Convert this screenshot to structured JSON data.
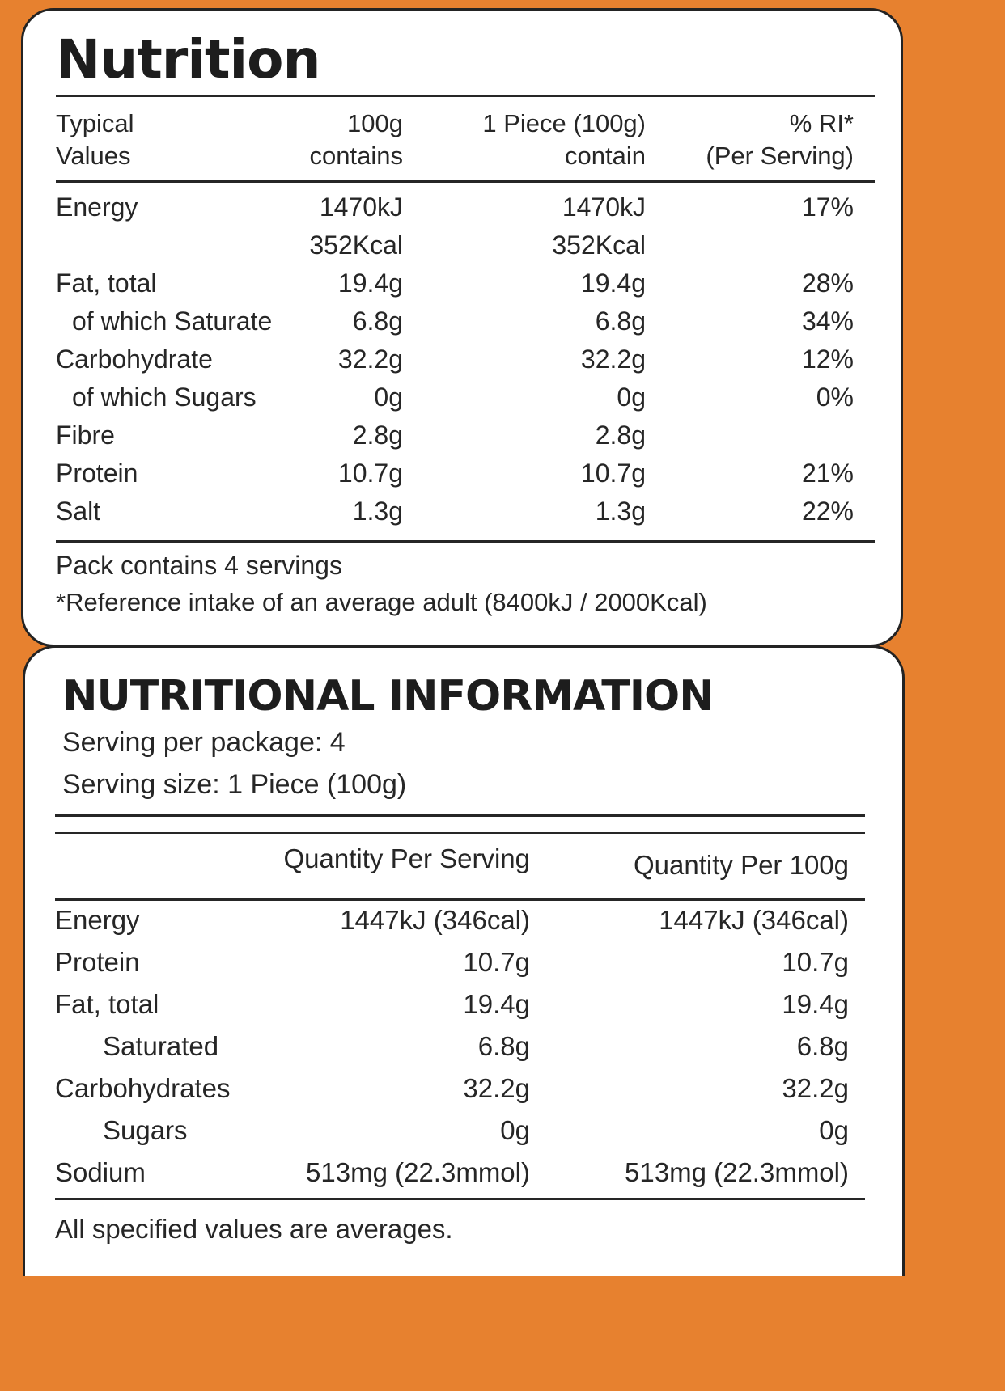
{
  "nutrition": {
    "title": "Nutrition",
    "headers": {
      "col0_line1": "Typical",
      "col0_line2": "Values",
      "col1_line1": "100g",
      "col1_line2": "contains",
      "col2_line1": "1 Piece (100g)",
      "col2_line2": "contain",
      "col3_line1": "% RI*",
      "col3_line2": "(Per Serving)"
    },
    "rows": [
      {
        "label": "Energy",
        "per100": "1470kJ",
        "perPiece": "1470kJ",
        "ri": "17%"
      },
      {
        "label": "",
        "per100": "352Kcal",
        "perPiece": "352Kcal",
        "ri": ""
      },
      {
        "label": "Fat, total",
        "per100": "19.4g",
        "perPiece": "19.4g",
        "ri": "28%"
      },
      {
        "label": "of which Saturate",
        "per100": "6.8g",
        "perPiece": "6.8g",
        "ri": "34%"
      },
      {
        "label": "Carbohydrate",
        "per100": "32.2g",
        "perPiece": "32.2g",
        "ri": "12%"
      },
      {
        "label": "of which Sugars",
        "per100": "0g",
        "perPiece": "0g",
        "ri": "0%"
      },
      {
        "label": "Fibre",
        "per100": "2.8g",
        "perPiece": "2.8g",
        "ri": ""
      },
      {
        "label": "Protein",
        "per100": "10.7g",
        "perPiece": "10.7g",
        "ri": "21%"
      },
      {
        "label": "Salt",
        "per100": "1.3g",
        "perPiece": "1.3g",
        "ri": "22%"
      }
    ],
    "footer_line1": "Pack contains 4 servings",
    "footer_line2": "*Reference intake of an average adult (8400kJ / 2000Kcal)"
  },
  "nutritional_information": {
    "title": "NUTRITIONAL INFORMATION",
    "serving_per_package": "Serving per package: 4",
    "serving_size": "Serving size:  1 Piece (100g)",
    "col_serving": "Quantity Per Serving",
    "col_100g": "Quantity Per 100g",
    "rows": [
      {
        "label": "Energy",
        "serving": "1447kJ (346cal)",
        "per100": "1447kJ (346cal)"
      },
      {
        "label": "Protein",
        "serving": "10.7g",
        "per100": "10.7g"
      },
      {
        "label": "Fat, total",
        "serving": "19.4g",
        "per100": "19.4g"
      },
      {
        "label": "Saturated",
        "serving": "6.8g",
        "per100": "6.8g"
      },
      {
        "label": "Carbohydrates",
        "serving": "32.2g",
        "per100": "32.2g"
      },
      {
        "label": "Sugars",
        "serving": "0g",
        "per100": "0g"
      },
      {
        "label": "Sodium",
        "serving": "513mg (22.3mmol)",
        "per100": "513mg (22.3mmol)"
      }
    ],
    "footer": "All specified values are averages."
  },
  "colors": {
    "background": "#e7812f",
    "panel": "#ffffff",
    "text": "#262626"
  }
}
